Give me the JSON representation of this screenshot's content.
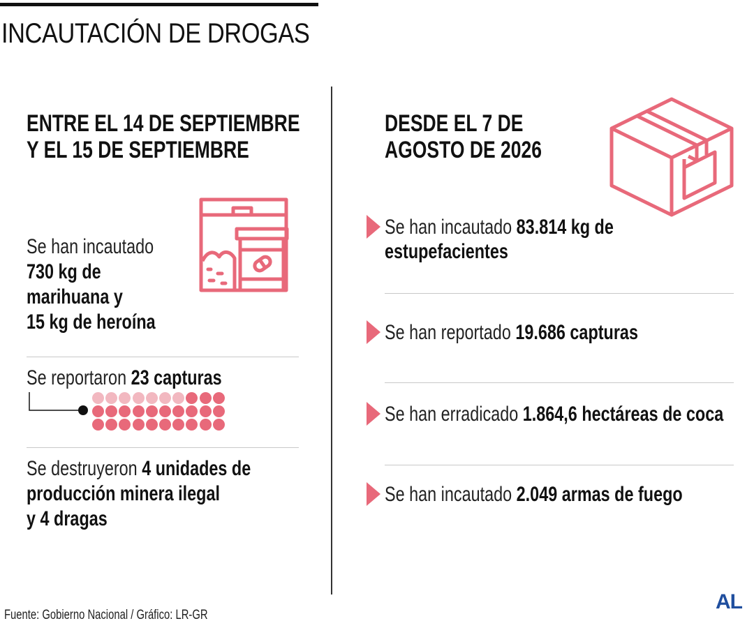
{
  "title": "INCAUTACIÓN DE DROGAS",
  "left": {
    "heading_line1": "ENTRE EL 14 DE SEPTIEMBRE",
    "heading_line2": "Y EL 15 DE SEPTIEMBRE",
    "seizure": {
      "line1": "Se han incautado",
      "line2": "730 kg de",
      "line3": "marihuana y",
      "line4": "15 kg de heroína"
    },
    "captures": {
      "prefix": "Se reportaron ",
      "bold": "23 capturas",
      "highlighted_count": 23,
      "total_dots": 30
    },
    "destroyed": {
      "prefix": "Se destruyeron ",
      "bold1": "4 unidades de",
      "line2": "producción minera ilegal",
      "line3": "y 4 dragas"
    }
  },
  "right": {
    "heading_line1": "DESDE EL 7 DE",
    "heading_line2": "AGOSTO DE 2026",
    "items": [
      {
        "prefix": "Se han incautado ",
        "bold": "83.814 kg de",
        "line2": "estupefacientes"
      },
      {
        "prefix": "Se han reportado ",
        "bold": "19.686 capturas"
      },
      {
        "prefix": "Se han erradicado ",
        "bold": "1.864,6 hectáreas de coca"
      },
      {
        "prefix": "Se han incautado ",
        "bold": "2.049 armas de fuego"
      }
    ]
  },
  "footer": "Fuente: Gobierno Nacional / Gráfico: LR-GR",
  "logo": "AL",
  "colors": {
    "accent": "#e8697a",
    "accent_light": "#f2b8c0",
    "brand": "#1f4e9e"
  },
  "icons": {
    "left": "drug-container-icon",
    "right": "box-icon"
  }
}
